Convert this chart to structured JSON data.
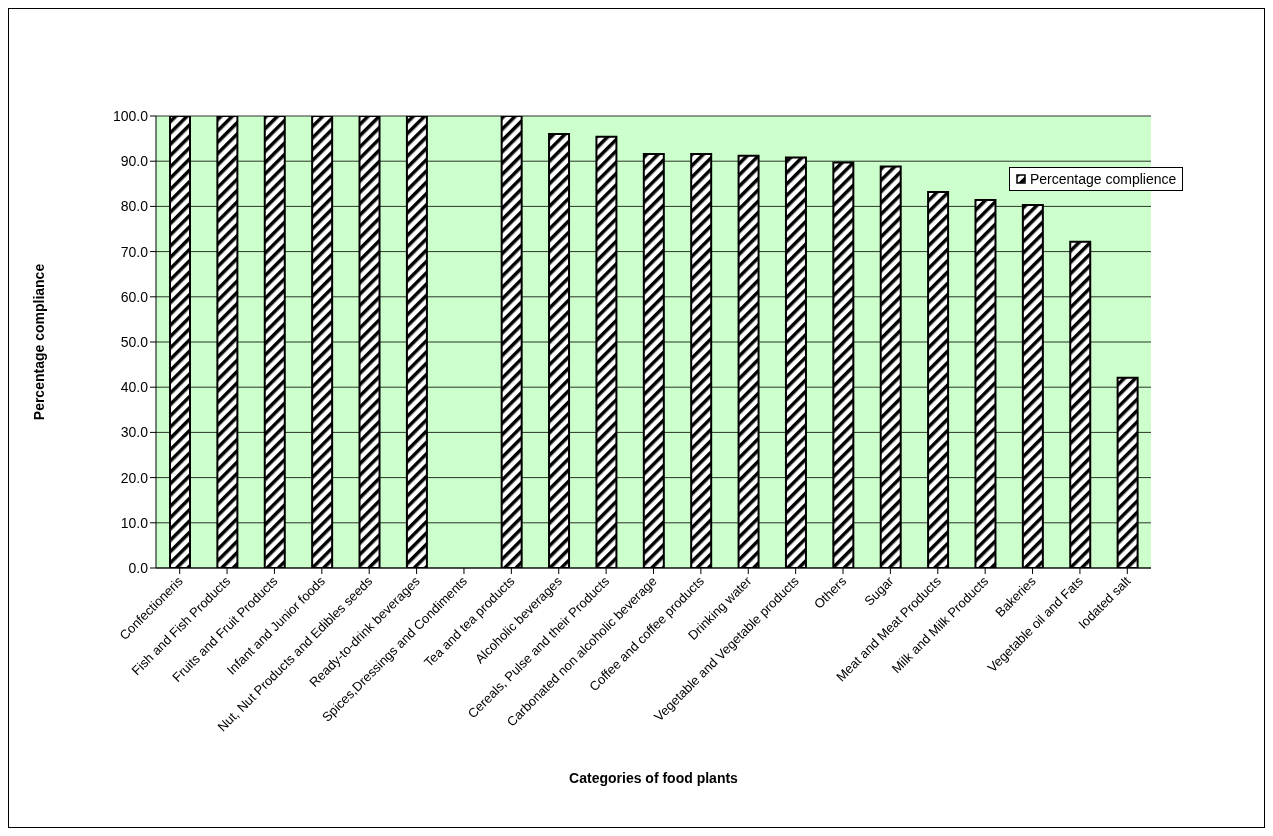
{
  "chart_data": {
    "type": "bar",
    "xlabel": "Categories of food plants",
    "ylabel": "Percentage compliance",
    "categories": [
      "Confectioneris",
      "Fish and Fish Products",
      "Fruits and Fruit Products",
      "Infant and Junior foods",
      "Nut, Nut Products and Edibles seeds",
      "Ready-to-drink beverages",
      "Spices,Dressings and Condiments",
      "Tea and tea products",
      "Alcoholic beverages",
      "Cereals, Pulse and their Products",
      "Carbonated non alcoholic beverage",
      "Coffee and coffee products",
      "Drinking water",
      "Vegetable and Vegetable products",
      "Others",
      "Sugar",
      "Meat and Meat Products",
      "Milk and Milk Products",
      "Bakeries",
      "Vegetable oil and Fats",
      "Iodated salt"
    ],
    "series": [
      {
        "name": "Percentage complience",
        "color": "#000000",
        "values": [
          100,
          100,
          100,
          100,
          100,
          100,
          null,
          100,
          96.0,
          95.4,
          91.6,
          91.6,
          91.2,
          90.8,
          89.7,
          88.8,
          83.2,
          81.4,
          80.3,
          72.2,
          42.1
        ]
      }
    ],
    "ylim": [
      0,
      100
    ],
    "yticks": [
      {
        "value": 0,
        "label": "0.0"
      },
      {
        "value": 10,
        "label": "10.0"
      },
      {
        "value": 20,
        "label": "20.0"
      },
      {
        "value": 30,
        "label": "30.0"
      },
      {
        "value": 40,
        "label": "40.0"
      },
      {
        "value": 50,
        "label": "50.0"
      },
      {
        "value": 60,
        "label": "60.0"
      },
      {
        "value": 70,
        "label": "70.0"
      },
      {
        "value": 80,
        "label": "80.0"
      },
      {
        "value": 90,
        "label": "90.0"
      },
      {
        "value": 100,
        "label": "100.0"
      }
    ],
    "grid": "y",
    "legend": "top right"
  }
}
